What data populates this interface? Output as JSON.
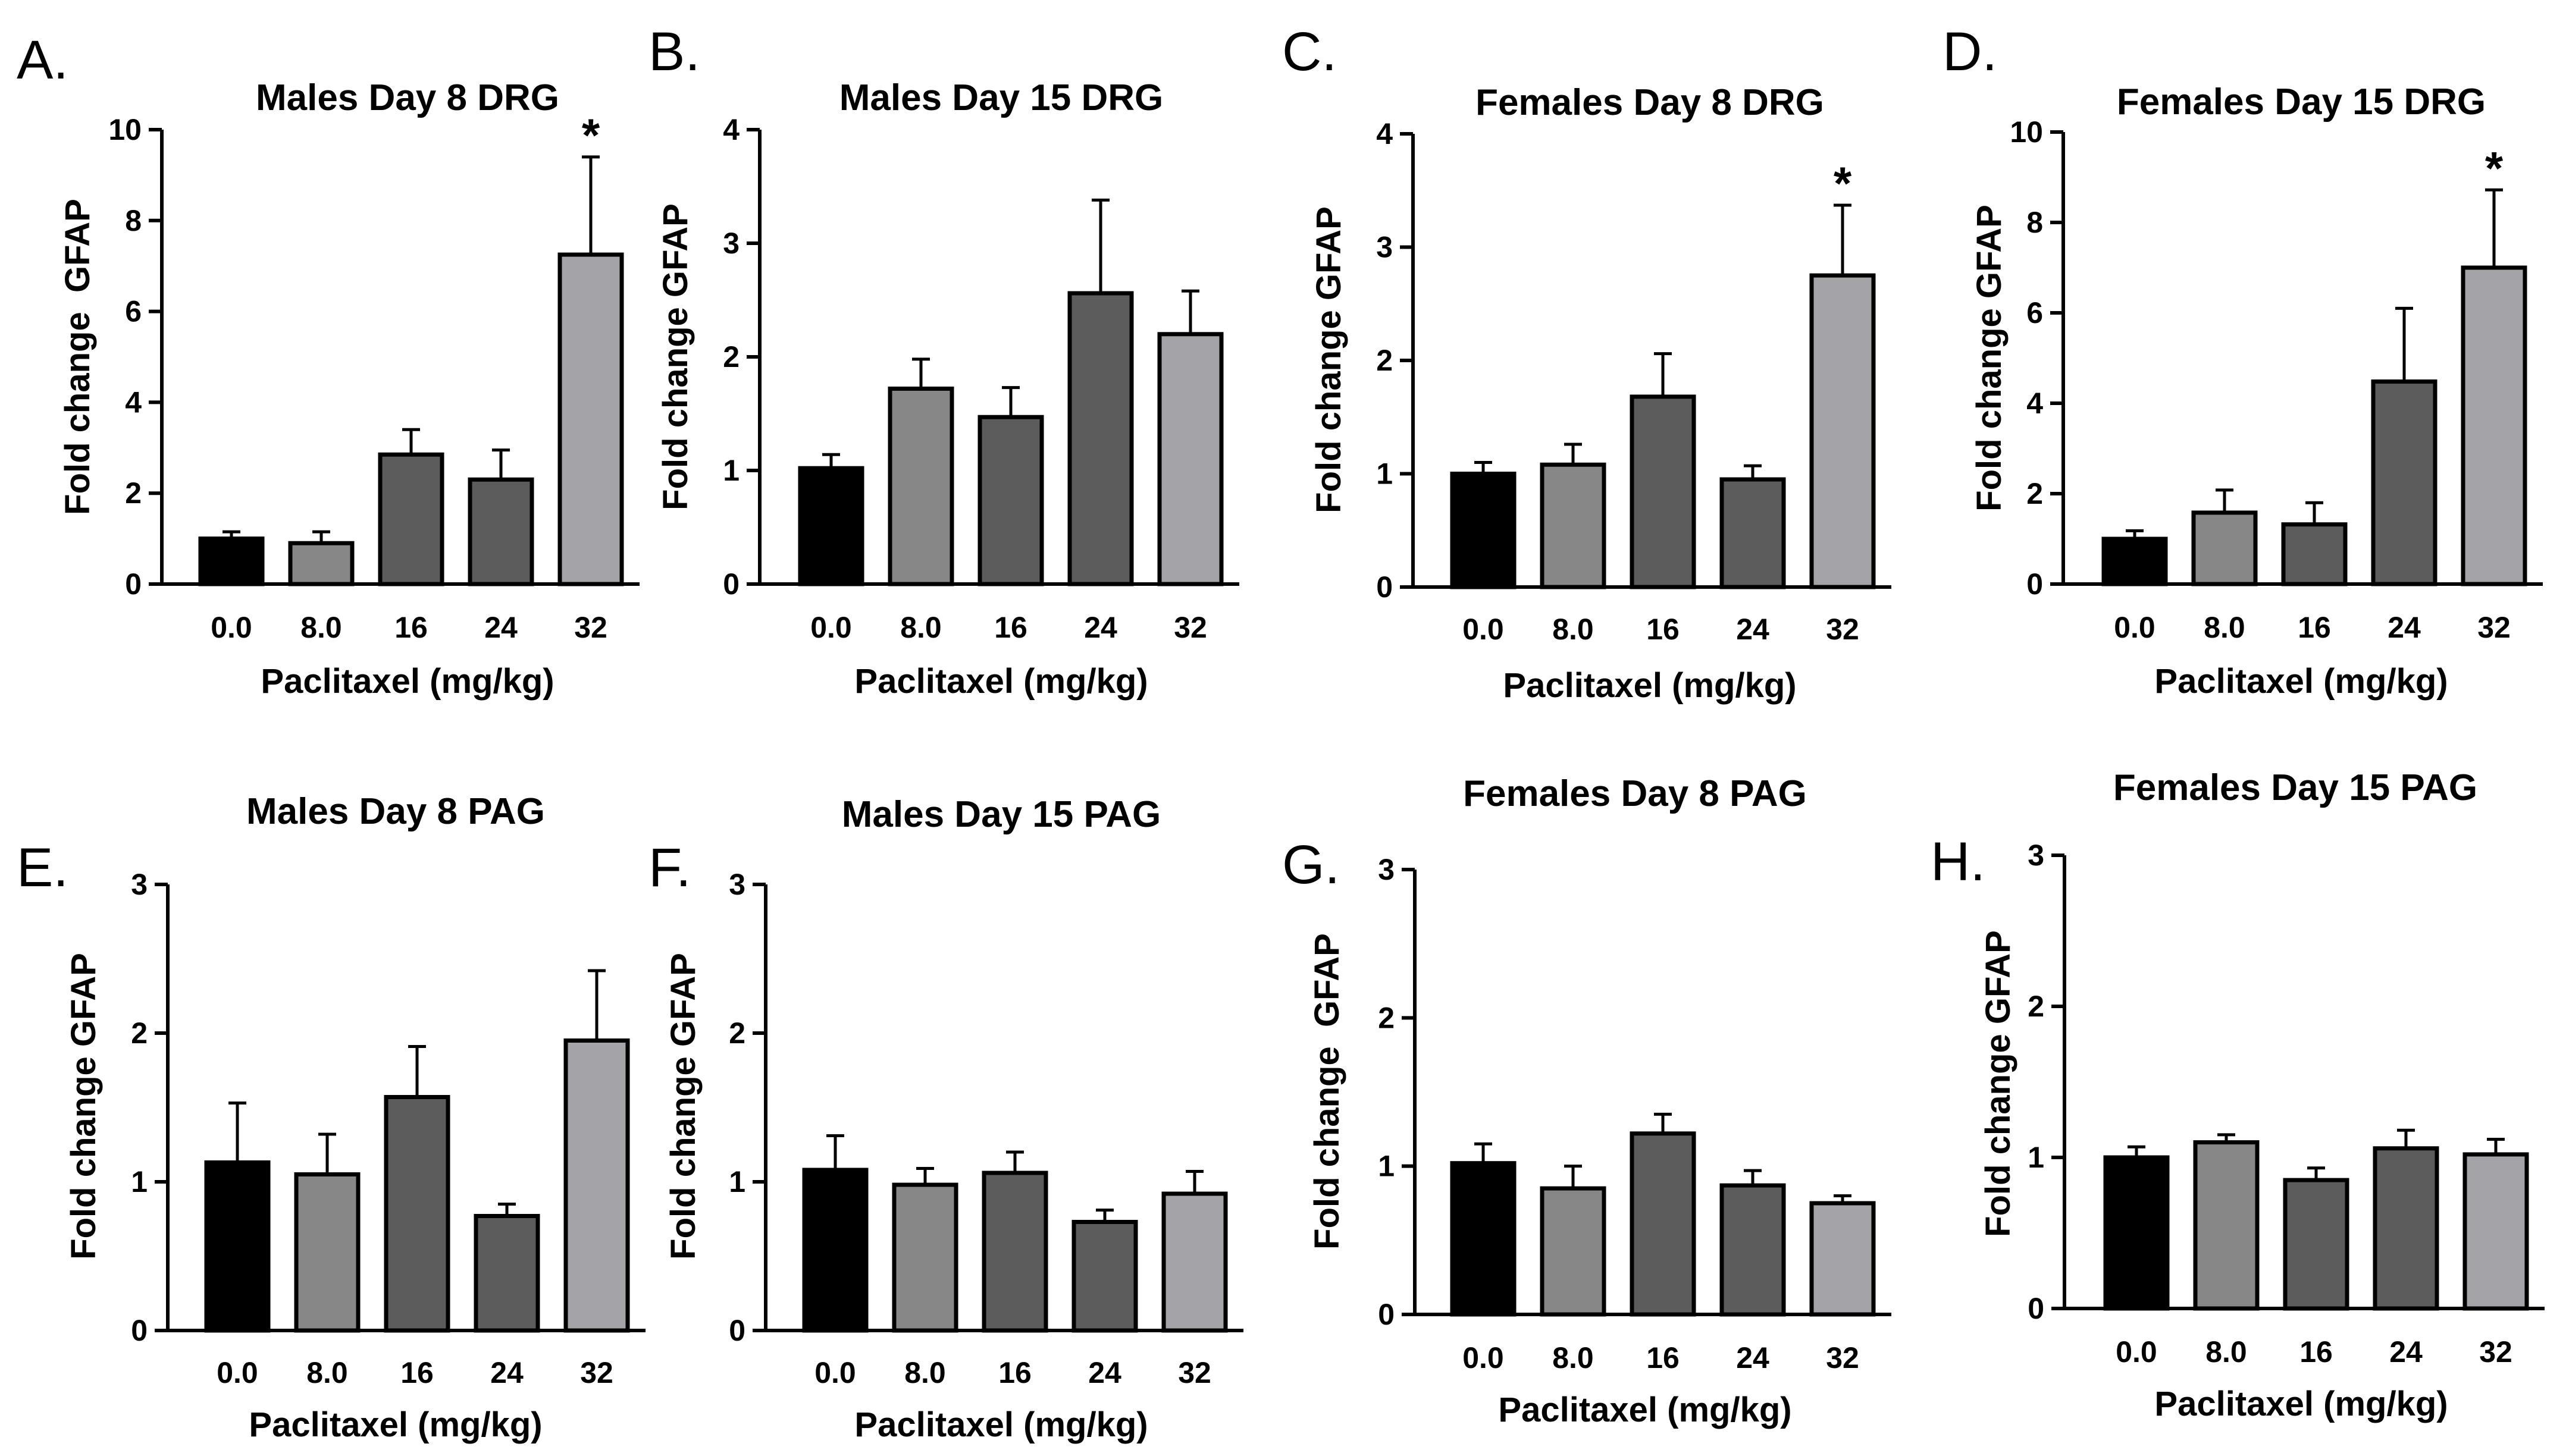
{
  "x_tick_labels": [
    "0.0",
    "8.0",
    "16",
    "24",
    "32"
  ],
  "bar_colors": [
    "#000000",
    "#878787",
    "#5c5c5c",
    "#5c5c5c",
    "#a4a4a8"
  ],
  "chart_data": [
    {
      "letter": "A.",
      "type": "bar",
      "title": "Males Day 8 DRG",
      "xlabel": "Paclitaxel (mg/kg)",
      "ylabel": "Fold change  GFAP",
      "categories": [
        "0.0",
        "8.0",
        "16",
        "24",
        "32"
      ],
      "values": [
        1.0,
        0.9,
        2.85,
        2.3,
        7.25
      ],
      "errors": [
        0.15,
        0.25,
        0.55,
        0.65,
        2.15
      ],
      "ylim": [
        0,
        10
      ],
      "yticks": [
        0,
        2,
        4,
        6,
        8,
        10
      ],
      "significance": [
        "",
        "",
        "",
        "",
        "*"
      ]
    },
    {
      "letter": "B.",
      "type": "bar",
      "title": "Males Day 15 DRG",
      "xlabel": "Paclitaxel (mg/kg)",
      "ylabel": "Fold change GFAP",
      "categories": [
        "0.0",
        "8.0",
        "16",
        "24",
        "32"
      ],
      "values": [
        1.02,
        1.72,
        1.47,
        2.56,
        2.2
      ],
      "errors": [
        0.12,
        0.26,
        0.26,
        0.82,
        0.38
      ],
      "ylim": [
        0,
        4
      ],
      "yticks": [
        0,
        1,
        2,
        3,
        4
      ],
      "significance": [
        "",
        "",
        "",
        "",
        ""
      ]
    },
    {
      "letter": "C.",
      "type": "bar",
      "title": "Females Day 8 DRG",
      "xlabel": "Paclitaxel (mg/kg)",
      "ylabel": "Fold change GFAP",
      "categories": [
        "0.0",
        "8.0",
        "16",
        "24",
        "32"
      ],
      "values": [
        1.0,
        1.08,
        1.68,
        0.95,
        2.75
      ],
      "errors": [
        0.1,
        0.18,
        0.38,
        0.12,
        0.62
      ],
      "ylim": [
        0,
        4
      ],
      "yticks": [
        0,
        1,
        2,
        3,
        4
      ],
      "significance": [
        "",
        "",
        "",
        "",
        "*"
      ]
    },
    {
      "letter": "D.",
      "type": "bar",
      "title": "Females Day 15 DRG",
      "xlabel": "Paclitaxel (mg/kg)",
      "ylabel": "Fold change GFAP",
      "categories": [
        "0.0",
        "8.0",
        "16",
        "24",
        "32"
      ],
      "values": [
        1.0,
        1.58,
        1.32,
        4.48,
        7.0
      ],
      "errors": [
        0.18,
        0.5,
        0.48,
        1.62,
        1.72
      ],
      "ylim": [
        0,
        10
      ],
      "yticks": [
        0,
        2,
        4,
        6,
        8,
        10
      ],
      "significance": [
        "",
        "",
        "",
        "",
        "*"
      ]
    },
    {
      "letter": "E.",
      "type": "bar",
      "title": "Males Day 8 PAG",
      "xlabel": "Paclitaxel (mg/kg)",
      "ylabel": "Fold change GFAP",
      "categories": [
        "0.0",
        "8.0",
        "16",
        "24",
        "32"
      ],
      "values": [
        1.13,
        1.05,
        1.57,
        0.77,
        1.95
      ],
      "errors": [
        0.4,
        0.27,
        0.34,
        0.08,
        0.47
      ],
      "ylim": [
        0,
        3
      ],
      "yticks": [
        0,
        1,
        2,
        3
      ],
      "significance": [
        "",
        "",
        "",
        "",
        ""
      ]
    },
    {
      "letter": "F.",
      "type": "bar",
      "title": "Males Day 15 PAG",
      "xlabel": "Paclitaxel (mg/kg)",
      "ylabel": "Fold change GFAP",
      "categories": [
        "0.0",
        "8.0",
        "16",
        "24",
        "32"
      ],
      "values": [
        1.08,
        0.98,
        1.06,
        0.73,
        0.92
      ],
      "errors": [
        0.23,
        0.11,
        0.14,
        0.08,
        0.15
      ],
      "ylim": [
        0,
        3
      ],
      "yticks": [
        0,
        1,
        2,
        3
      ],
      "significance": [
        "",
        "",
        "",
        "",
        ""
      ]
    },
    {
      "letter": "G.",
      "type": "bar",
      "title": "Females Day 8 PAG",
      "xlabel": "Paclitaxel (mg/kg)",
      "ylabel": "Fold change  GFAP",
      "categories": [
        "0.0",
        "8.0",
        "16",
        "24",
        "32"
      ],
      "values": [
        1.02,
        0.85,
        1.22,
        0.87,
        0.75
      ],
      "errors": [
        0.13,
        0.15,
        0.13,
        0.1,
        0.05
      ],
      "ylim": [
        0,
        3
      ],
      "yticks": [
        0,
        1,
        2,
        3
      ],
      "significance": [
        "",
        "",
        "",
        "",
        ""
      ]
    },
    {
      "letter": "H.",
      "type": "bar",
      "title": "Females Day 15 PAG",
      "xlabel": "Paclitaxel (mg/kg)",
      "ylabel": "Fold change GFAP",
      "categories": [
        "0.0",
        "8.0",
        "16",
        "24",
        "32"
      ],
      "values": [
        1.0,
        1.1,
        0.85,
        1.06,
        1.02
      ],
      "errors": [
        0.07,
        0.05,
        0.08,
        0.12,
        0.1
      ],
      "ylim": [
        0,
        3
      ],
      "yticks": [
        0,
        1,
        2,
        3
      ],
      "significance": [
        "",
        "",
        "",
        "",
        ""
      ]
    }
  ]
}
